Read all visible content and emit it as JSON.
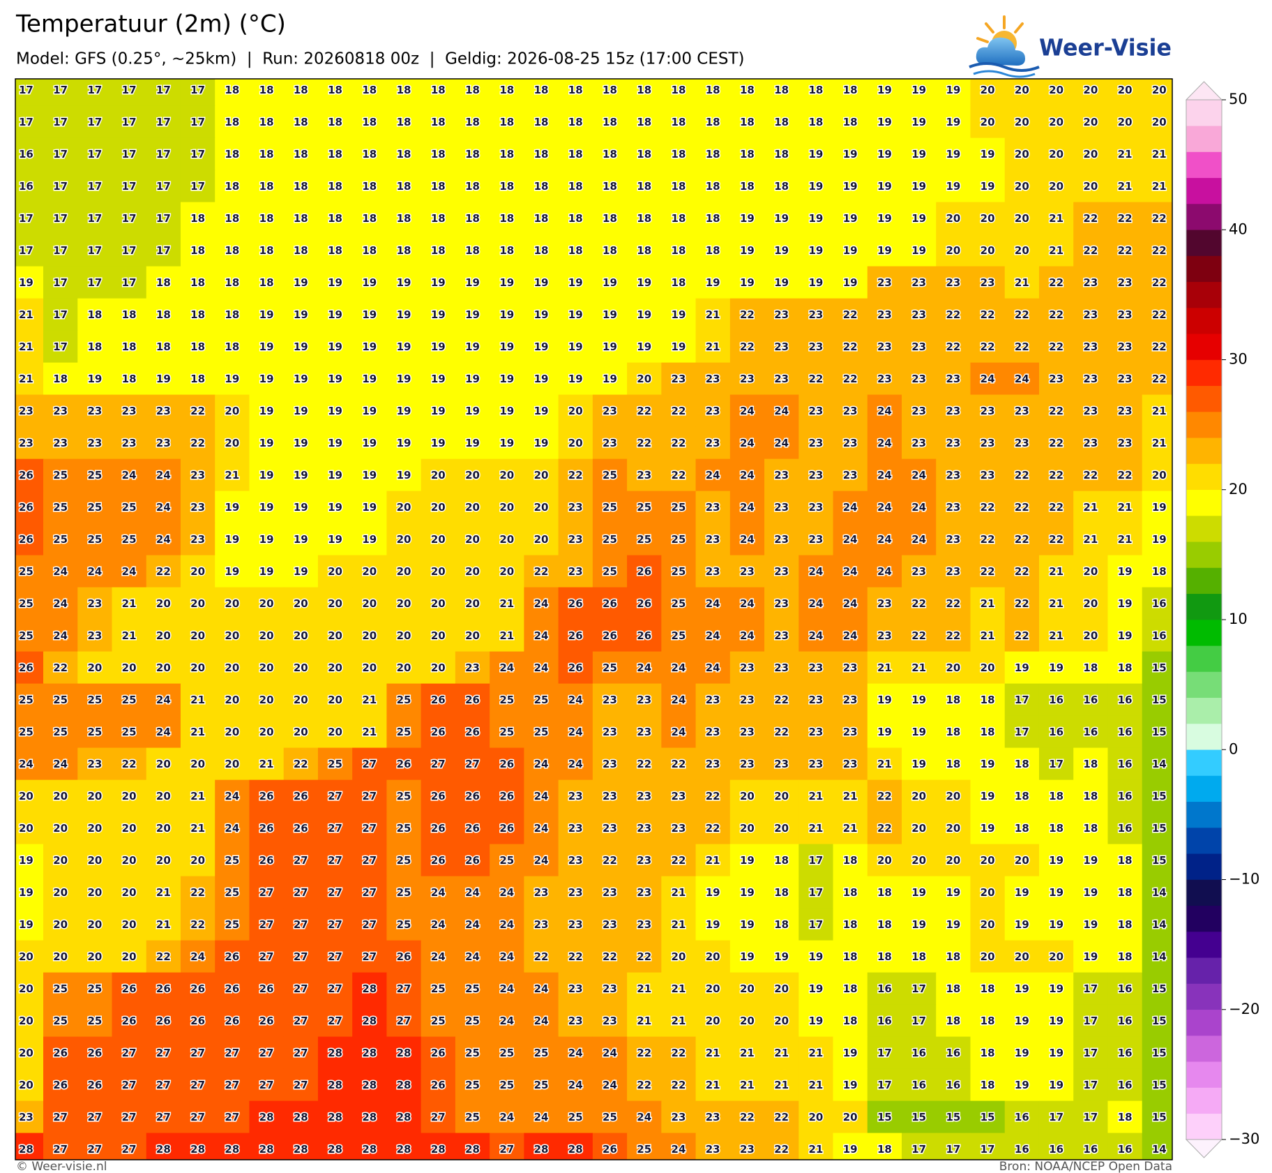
{
  "header": {
    "title": "Temperatuur (2m) (°C)",
    "subtitle": "Model: GFS (0.25°, ~25km)  |  Run: 20260818 00z  |  Geldig: 2026-08-25 15z (17:00 CEST)"
  },
  "logo": {
    "text": "Weer-Visie"
  },
  "map": {
    "type": "grid",
    "rows": [
      [
        17,
        17,
        17,
        17,
        17,
        17,
        18,
        18,
        18,
        18,
        18,
        18,
        18,
        18,
        18,
        18,
        18,
        18,
        18,
        18,
        18,
        18,
        18,
        18,
        18,
        19,
        19,
        19,
        20,
        20,
        20,
        20,
        20,
        20
      ],
      [
        17,
        17,
        17,
        17,
        17,
        17,
        18,
        18,
        18,
        18,
        18,
        18,
        18,
        18,
        18,
        18,
        18,
        18,
        18,
        18,
        18,
        18,
        18,
        18,
        18,
        19,
        19,
        19,
        20,
        20,
        20,
        20,
        20,
        20
      ],
      [
        16,
        17,
        17,
        17,
        17,
        17,
        18,
        18,
        18,
        18,
        18,
        18,
        18,
        18,
        18,
        18,
        18,
        18,
        18,
        18,
        18,
        18,
        18,
        19,
        19,
        19,
        19,
        19,
        19,
        20,
        20,
        20,
        21,
        21
      ],
      [
        16,
        17,
        17,
        17,
        17,
        17,
        18,
        18,
        18,
        18,
        18,
        18,
        18,
        18,
        18,
        18,
        18,
        18,
        18,
        18,
        18,
        18,
        18,
        19,
        19,
        19,
        19,
        19,
        19,
        20,
        20,
        20,
        21,
        21
      ],
      [
        17,
        17,
        17,
        17,
        17,
        18,
        18,
        18,
        18,
        18,
        18,
        18,
        18,
        18,
        18,
        18,
        18,
        18,
        18,
        18,
        18,
        19,
        19,
        19,
        19,
        19,
        19,
        20,
        20,
        20,
        21,
        22,
        22,
        22
      ],
      [
        17,
        17,
        17,
        17,
        17,
        18,
        18,
        18,
        18,
        18,
        18,
        18,
        18,
        18,
        18,
        18,
        18,
        18,
        18,
        18,
        18,
        19,
        19,
        19,
        19,
        19,
        19,
        20,
        20,
        20,
        21,
        22,
        22,
        22
      ],
      [
        19,
        17,
        17,
        17,
        18,
        18,
        18,
        18,
        19,
        19,
        19,
        19,
        19,
        19,
        19,
        19,
        19,
        19,
        19,
        18,
        19,
        19,
        19,
        19,
        19,
        23,
        23,
        23,
        23,
        21,
        22,
        23,
        23,
        22
      ],
      [
        21,
        17,
        18,
        18,
        18,
        18,
        18,
        19,
        19,
        19,
        19,
        19,
        19,
        19,
        19,
        19,
        19,
        19,
        19,
        19,
        21,
        22,
        23,
        23,
        22,
        23,
        23,
        22,
        22,
        22,
        22,
        23,
        23,
        22
      ],
      [
        21,
        17,
        18,
        18,
        18,
        18,
        18,
        19,
        19,
        19,
        19,
        19,
        19,
        19,
        19,
        19,
        19,
        19,
        19,
        19,
        21,
        22,
        23,
        23,
        22,
        23,
        23,
        22,
        22,
        22,
        22,
        23,
        23,
        22
      ],
      [
        21,
        18,
        19,
        18,
        19,
        18,
        19,
        19,
        19,
        19,
        19,
        19,
        19,
        19,
        19,
        19,
        19,
        19,
        20,
        23,
        23,
        23,
        23,
        22,
        22,
        23,
        23,
        23,
        24,
        24,
        23,
        23,
        23,
        22
      ],
      [
        23,
        23,
        23,
        23,
        23,
        22,
        20,
        19,
        19,
        19,
        19,
        19,
        19,
        19,
        19,
        19,
        20,
        23,
        22,
        22,
        23,
        24,
        24,
        23,
        23,
        24,
        23,
        23,
        23,
        23,
        22,
        23,
        23,
        21
      ],
      [
        23,
        23,
        23,
        23,
        23,
        22,
        20,
        19,
        19,
        19,
        19,
        19,
        19,
        19,
        19,
        19,
        20,
        23,
        22,
        22,
        23,
        24,
        24,
        23,
        23,
        24,
        23,
        23,
        23,
        23,
        22,
        23,
        23,
        21
      ],
      [
        26,
        25,
        25,
        24,
        24,
        23,
        21,
        19,
        19,
        19,
        19,
        19,
        20,
        20,
        20,
        20,
        22,
        25,
        23,
        22,
        24,
        24,
        23,
        23,
        23,
        24,
        24,
        23,
        23,
        22,
        22,
        22,
        22,
        20
      ],
      [
        26,
        25,
        25,
        25,
        24,
        23,
        19,
        19,
        19,
        19,
        19,
        20,
        20,
        20,
        20,
        20,
        23,
        25,
        25,
        25,
        23,
        24,
        23,
        23,
        24,
        24,
        24,
        23,
        22,
        22,
        22,
        21,
        21,
        19
      ],
      [
        26,
        25,
        25,
        25,
        24,
        23,
        19,
        19,
        19,
        19,
        19,
        20,
        20,
        20,
        20,
        20,
        23,
        25,
        25,
        25,
        23,
        24,
        23,
        23,
        24,
        24,
        24,
        23,
        22,
        22,
        22,
        21,
        21,
        19
      ],
      [
        25,
        24,
        24,
        24,
        22,
        20,
        19,
        19,
        19,
        20,
        20,
        20,
        20,
        20,
        20,
        22,
        23,
        25,
        26,
        25,
        23,
        23,
        23,
        24,
        24,
        24,
        23,
        23,
        22,
        22,
        21,
        20,
        19,
        18
      ],
      [
        25,
        24,
        23,
        21,
        20,
        20,
        20,
        20,
        20,
        20,
        20,
        20,
        20,
        20,
        21,
        24,
        26,
        26,
        26,
        25,
        24,
        24,
        23,
        24,
        24,
        23,
        22,
        22,
        21,
        22,
        21,
        20,
        19,
        16
      ],
      [
        25,
        24,
        23,
        21,
        20,
        20,
        20,
        20,
        20,
        20,
        20,
        20,
        20,
        20,
        21,
        24,
        26,
        26,
        26,
        25,
        24,
        24,
        23,
        24,
        24,
        23,
        22,
        22,
        21,
        22,
        21,
        20,
        19,
        16
      ],
      [
        26,
        22,
        20,
        20,
        20,
        20,
        20,
        20,
        20,
        20,
        20,
        20,
        20,
        23,
        24,
        24,
        26,
        25,
        24,
        24,
        24,
        23,
        23,
        23,
        23,
        21,
        21,
        20,
        20,
        19,
        19,
        18,
        18,
        15
      ],
      [
        25,
        25,
        25,
        25,
        24,
        21,
        20,
        20,
        20,
        20,
        21,
        25,
        26,
        26,
        25,
        25,
        24,
        23,
        23,
        24,
        23,
        23,
        22,
        23,
        23,
        19,
        19,
        18,
        18,
        17,
        16,
        16,
        16,
        15
      ],
      [
        25,
        25,
        25,
        25,
        24,
        21,
        20,
        20,
        20,
        20,
        21,
        25,
        26,
        26,
        25,
        25,
        24,
        23,
        23,
        24,
        23,
        23,
        22,
        23,
        23,
        19,
        19,
        18,
        18,
        17,
        16,
        16,
        16,
        15
      ],
      [
        24,
        24,
        23,
        22,
        20,
        20,
        20,
        21,
        22,
        25,
        27,
        26,
        27,
        27,
        26,
        24,
        24,
        23,
        22,
        22,
        23,
        23,
        23,
        23,
        23,
        21,
        19,
        18,
        19,
        18,
        17,
        18,
        16,
        14
      ],
      [
        20,
        20,
        20,
        20,
        20,
        21,
        24,
        26,
        26,
        27,
        27,
        25,
        26,
        26,
        26,
        24,
        23,
        23,
        23,
        23,
        22,
        20,
        20,
        21,
        21,
        22,
        20,
        20,
        19,
        18,
        18,
        18,
        16,
        15
      ],
      [
        20,
        20,
        20,
        20,
        20,
        21,
        24,
        26,
        26,
        27,
        27,
        25,
        26,
        26,
        26,
        24,
        23,
        23,
        23,
        23,
        22,
        20,
        20,
        21,
        21,
        22,
        20,
        20,
        19,
        18,
        18,
        18,
        16,
        15
      ],
      [
        19,
        20,
        20,
        20,
        20,
        20,
        25,
        26,
        27,
        27,
        27,
        25,
        26,
        26,
        25,
        24,
        23,
        22,
        23,
        22,
        21,
        19,
        18,
        17,
        18,
        20,
        20,
        20,
        20,
        20,
        19,
        19,
        18,
        15
      ],
      [
        19,
        20,
        20,
        20,
        21,
        22,
        25,
        27,
        27,
        27,
        27,
        25,
        24,
        24,
        24,
        23,
        23,
        23,
        23,
        21,
        19,
        19,
        18,
        17,
        18,
        18,
        19,
        19,
        20,
        19,
        19,
        19,
        18,
        14
      ],
      [
        19,
        20,
        20,
        20,
        21,
        22,
        25,
        27,
        27,
        27,
        27,
        25,
        24,
        24,
        24,
        23,
        23,
        23,
        23,
        21,
        19,
        19,
        18,
        17,
        18,
        18,
        19,
        19,
        20,
        19,
        19,
        19,
        18,
        14
      ],
      [
        20,
        20,
        20,
        20,
        22,
        24,
        26,
        27,
        27,
        27,
        27,
        26,
        24,
        24,
        24,
        22,
        22,
        22,
        22,
        20,
        20,
        19,
        19,
        19,
        18,
        18,
        18,
        18,
        20,
        20,
        20,
        19,
        18,
        14
      ],
      [
        20,
        25,
        25,
        26,
        26,
        26,
        26,
        26,
        27,
        27,
        28,
        27,
        25,
        25,
        24,
        24,
        23,
        23,
        21,
        21,
        20,
        20,
        20,
        19,
        18,
        16,
        17,
        18,
        18,
        19,
        19,
        17,
        16,
        15
      ],
      [
        20,
        25,
        25,
        26,
        26,
        26,
        26,
        26,
        27,
        27,
        28,
        27,
        25,
        25,
        24,
        24,
        23,
        23,
        21,
        21,
        20,
        20,
        20,
        19,
        18,
        16,
        17,
        18,
        18,
        19,
        19,
        17,
        16,
        15
      ],
      [
        20,
        26,
        26,
        27,
        27,
        27,
        27,
        27,
        27,
        28,
        28,
        28,
        26,
        25,
        25,
        25,
        24,
        24,
        22,
        22,
        21,
        21,
        21,
        21,
        19,
        17,
        16,
        16,
        18,
        19,
        19,
        17,
        16,
        15
      ],
      [
        20,
        26,
        26,
        27,
        27,
        27,
        27,
        27,
        27,
        28,
        28,
        28,
        26,
        25,
        25,
        25,
        24,
        24,
        22,
        22,
        21,
        21,
        21,
        21,
        19,
        17,
        16,
        16,
        18,
        19,
        19,
        17,
        16,
        15
      ],
      [
        23,
        27,
        27,
        27,
        27,
        27,
        27,
        28,
        28,
        28,
        28,
        28,
        27,
        25,
        24,
        24,
        25,
        25,
        24,
        23,
        23,
        22,
        22,
        20,
        20,
        15,
        15,
        15,
        15,
        16,
        17,
        17,
        18,
        15
      ],
      [
        28,
        27,
        27,
        27,
        28,
        28,
        28,
        28,
        28,
        28,
        28,
        28,
        28,
        28,
        27,
        28,
        28,
        26,
        25,
        24,
        23,
        23,
        22,
        21,
        19,
        18,
        17,
        17,
        17,
        16,
        16,
        16,
        16,
        14
      ]
    ]
  },
  "colorbar": {
    "lim": [
      -30,
      50
    ],
    "ticks": [
      50,
      40,
      30,
      20,
      10,
      0,
      {
        "value": -10,
        "label": "−10"
      },
      {
        "value": -20,
        "label": "−20"
      },
      {
        "value": -30,
        "label": "−30"
      }
    ],
    "colors": [
      "#fdd0fa",
      "#f5aaf5",
      "#e688ee",
      "#cc66dd",
      "#aa44cc",
      "#8833bb",
      "#6622aa",
      "#440090",
      "#220060",
      "#110e50",
      "#002288",
      "#0044aa",
      "#0077cc",
      "#00aaee",
      "#33ccff",
      "#d8fce0",
      "#aaeeaa",
      "#77dd77",
      "#44cc44",
      "#00bb00",
      "#119911",
      "#55b000",
      "#99cc00",
      "#cddc00",
      "#ffff00",
      "#ffdd00",
      "#ffb400",
      "#ff8800",
      "#ff5a00",
      "#ff2a00",
      "#e60000",
      "#cc0000",
      "#a80008",
      "#7e0010",
      "#52062e",
      "#8c0a6e",
      "#c8109f",
      "#f050c8",
      "#f9a8d8",
      "#fcd3ec"
    ],
    "over_color": "#fde6f4",
    "under_color": "#fdf2fd"
  },
  "footer": {
    "left": "© Weer-visie.nl",
    "right": "Bron: NOAA/NCEP Open Data"
  }
}
